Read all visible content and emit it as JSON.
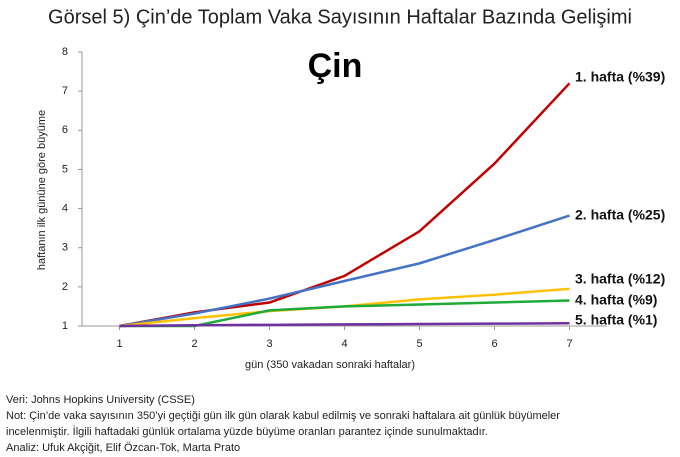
{
  "chart_data": {
    "type": "line",
    "title": "Görsel 5) Çin’de Toplam Vaka Sayısının Haftalar Bazında Gelişimi",
    "annotation": "Çin",
    "x_label": "gün (350  vakadan sonraki haftalar)",
    "y_label": "haftanın ilk gününe göre büyüme",
    "x": [
      1,
      2,
      3,
      4,
      5,
      6,
      7
    ],
    "xlim": [
      0.5,
      7.5
    ],
    "xticks": [
      1,
      2,
      3,
      4,
      5,
      6,
      7
    ],
    "ylim": [
      1,
      8
    ],
    "yticks": [
      1,
      2,
      3,
      4,
      5,
      6,
      7,
      8
    ],
    "grid": false,
    "series": [
      {
        "name": "1. hafta (%39)",
        "color": "#c00000",
        "values": [
          1,
          1.35,
          1.6,
          2.28,
          3.42,
          5.15,
          7.2
        ]
      },
      {
        "name": "2. hafta (%25)",
        "color": "#4472c4",
        "values": [
          1,
          1.32,
          1.7,
          2.15,
          2.6,
          3.2,
          3.82
        ]
      },
      {
        "name": "3. hafta (%12)",
        "color": "#ffc000",
        "values": [
          1,
          1.2,
          1.38,
          1.5,
          1.68,
          1.8,
          1.95
        ]
      },
      {
        "name": "4. hafta (%9)",
        "color": "#1faa3a",
        "values": [
          1,
          1,
          1.4,
          1.5,
          1.55,
          1.6,
          1.65
        ]
      },
      {
        "name": "5. hafta (%1)",
        "color": "#7030a0",
        "values": [
          1,
          1.02,
          1.03,
          1.04,
          1.05,
          1.06,
          1.07
        ]
      }
    ],
    "notes": [
      "Veri: Johns Hopkins University (CSSE)",
      "Not: Çin’de vaka sayısının 350’yi geçtiği gün ilk gün olarak kabul edilmiş ve sonraki haftalara ait günlük büyümeler",
      "incelenmiştir. İlgili haftadaki günlük ortalama yüzde büyüme oranları parantez içinde sunulmaktadır.",
      "Analiz: Ufuk Akçiğit, Elif Özcan-Tok, Marta Prato"
    ]
  }
}
